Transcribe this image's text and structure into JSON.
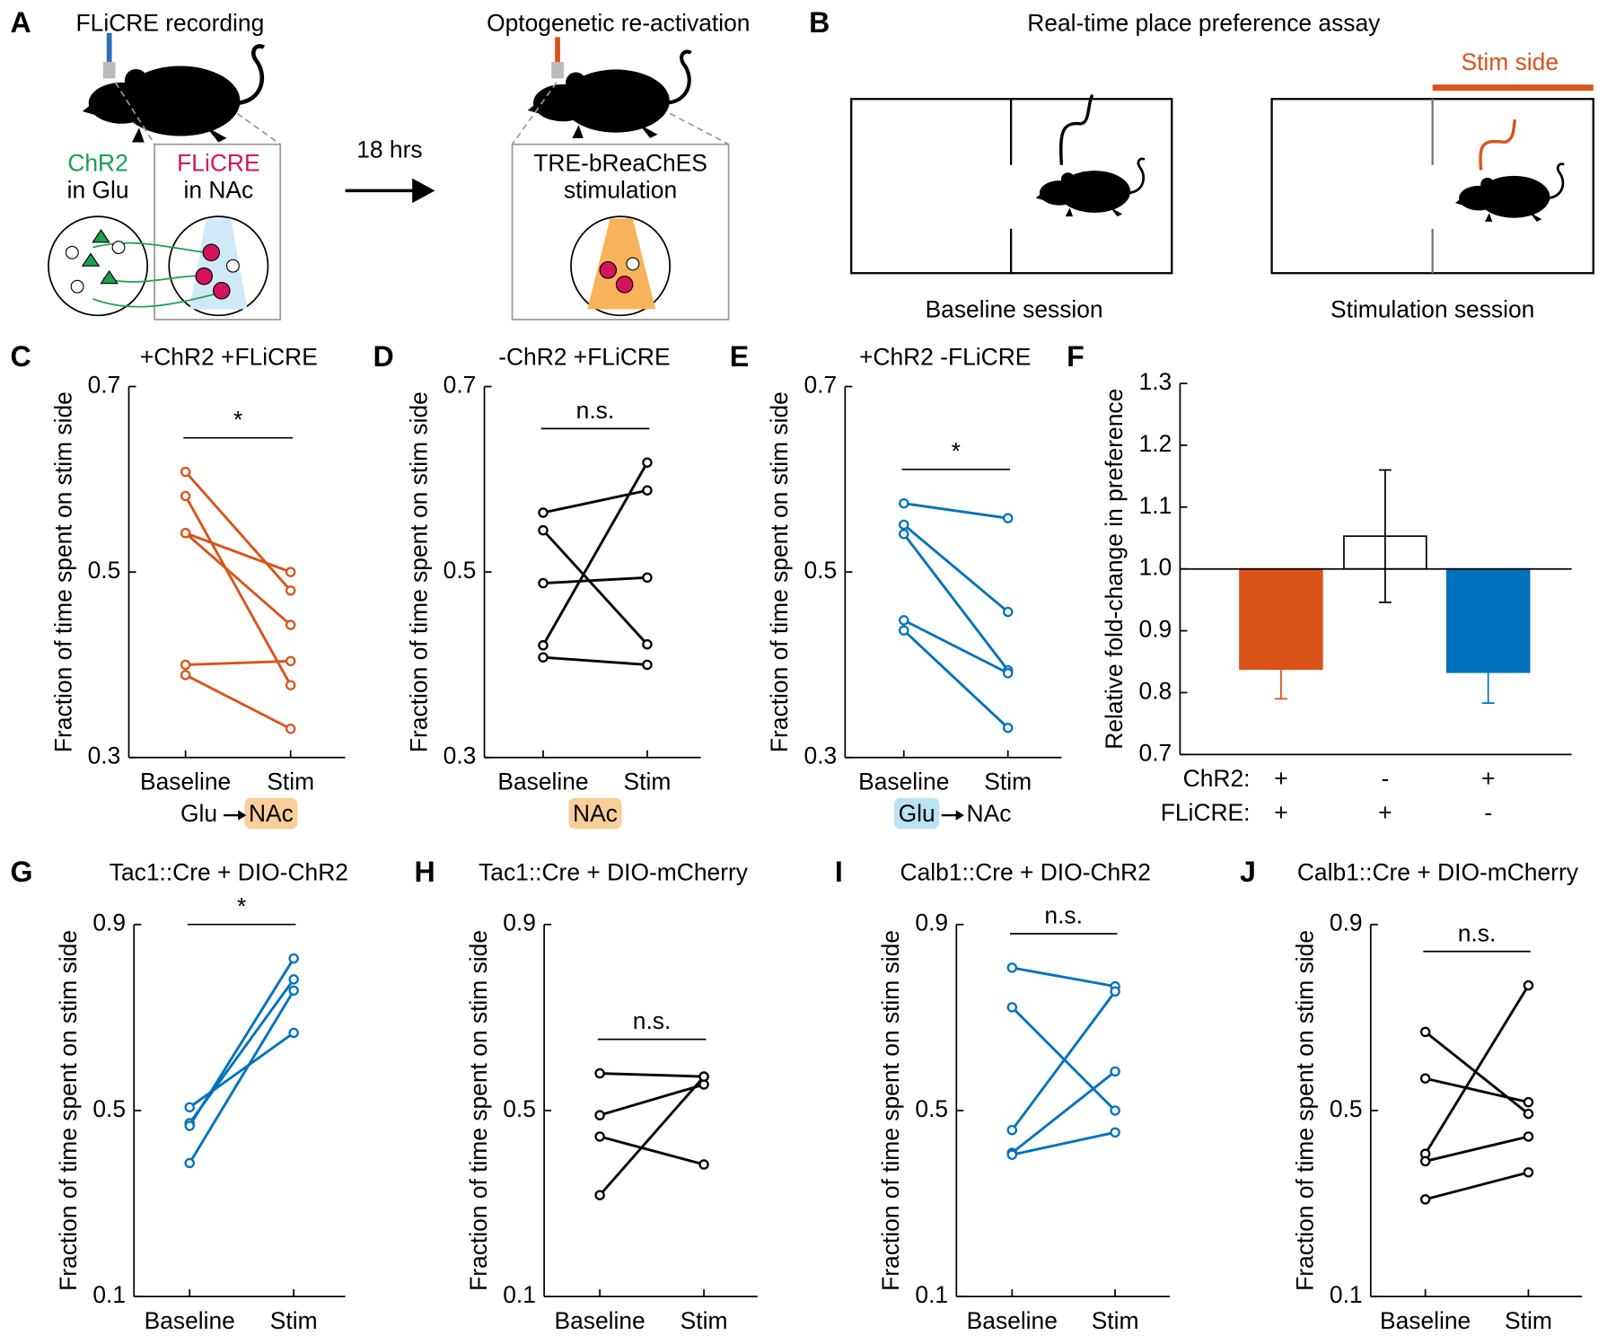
{
  "diagram_a": {
    "label": "A",
    "title_left": "FLiCRE recording",
    "title_right": "Optogenetic re-activation",
    "chr2": "ChR2",
    "in_glu": "in Glu",
    "flicre": "FLiCRE",
    "in_nac": "in NAc",
    "delay": "18 hrs",
    "construct": "TRE-bReaChES",
    "stimulation": "stimulation"
  },
  "diagram_b": {
    "label": "B",
    "title": "Real-time place preference assay",
    "stim_side": "Stim side",
    "baseline_session": "Baseline session",
    "stimulation_session": "Stimulation session"
  },
  "chart_data": [
    {
      "type": "line",
      "label": "C",
      "title": "+ChR2 +FLiCRE",
      "ylabel": "Fraction of time spent on stim side",
      "categories": [
        "Baseline",
        "Stim"
      ],
      "color": "#d95319",
      "ylim": [
        0.3,
        0.7
      ],
      "yticks": [
        0.3,
        0.5,
        0.7
      ],
      "significance": "*",
      "xnote": [
        "Glu",
        "NAc"
      ],
      "xnote_highlight": 1,
      "highlight_color": "#f7c27f",
      "series": [
        {
          "values": [
            0.608,
            0.48
          ]
        },
        {
          "values": [
            0.582,
            0.378
          ]
        },
        {
          "values": [
            0.542,
            0.5
          ]
        },
        {
          "values": [
            0.542,
            0.443
          ]
        },
        {
          "values": [
            0.4,
            0.404
          ]
        },
        {
          "values": [
            0.389,
            0.331
          ]
        }
      ]
    },
    {
      "type": "line",
      "label": "D",
      "title": "-ChR2 +FLiCRE",
      "ylabel": "Fraction of time spent on stim side",
      "categories": [
        "Baseline",
        "Stim"
      ],
      "color": "#000000",
      "ylim": [
        0.3,
        0.7
      ],
      "yticks": [
        0.3,
        0.5,
        0.7
      ],
      "significance": "n.s.",
      "xnote": [
        "NAc"
      ],
      "xnote_highlight": 0,
      "highlight_color": "#f7c27f",
      "series": [
        {
          "values": [
            0.564,
            0.588
          ]
        },
        {
          "values": [
            0.545,
            0.422
          ]
        },
        {
          "values": [
            0.488,
            0.494
          ]
        },
        {
          "values": [
            0.421,
            0.618
          ]
        },
        {
          "values": [
            0.408,
            0.4
          ]
        }
      ]
    },
    {
      "type": "line",
      "label": "E",
      "title": "+ChR2 -FLiCRE",
      "ylabel": "Fraction of time spent on stim side",
      "categories": [
        "Baseline",
        "Stim"
      ],
      "color": "#0072bd",
      "ylim": [
        0.3,
        0.7
      ],
      "yticks": [
        0.3,
        0.5,
        0.7
      ],
      "significance": "*",
      "xnote": [
        "Glu",
        "NAc"
      ],
      "xnote_highlight": 0,
      "highlight_color": "#a9dcf0",
      "series": [
        {
          "values": [
            0.574,
            0.558
          ]
        },
        {
          "values": [
            0.551,
            0.457
          ]
        },
        {
          "values": [
            0.541,
            0.394
          ]
        },
        {
          "values": [
            0.448,
            0.391
          ]
        },
        {
          "values": [
            0.437,
            0.332
          ]
        }
      ]
    },
    {
      "type": "bar",
      "label": "F",
      "ylabel": "Relative fold-change in preference",
      "values": [
        0.838,
        1.053,
        0.833
      ],
      "errors": [
        0.048,
        0.107,
        0.05
      ],
      "colors": [
        "#d95319",
        "#ffffff",
        "#0072bd"
      ],
      "error_colors": [
        "#d95319",
        "#000000",
        "#0072bd"
      ],
      "reference_line": 1,
      "ylim": [
        0.7,
        1.3
      ],
      "yticks": [
        0.7,
        0.8,
        0.9,
        {
          "value": 1,
          "label": "1.0"
        },
        1.1,
        1.2,
        1.3
      ],
      "rows": [
        {
          "name": "ChR2:",
          "labels": [
            "+",
            "-",
            "+"
          ]
        },
        {
          "name": "FLiCRE:",
          "labels": [
            "+",
            "+",
            "-"
          ]
        }
      ]
    },
    {
      "type": "line",
      "label": "G",
      "title": "Tac1::Cre + DIO-ChR2",
      "ylabel": "Fraction of time spent on stim side",
      "categories": [
        "Baseline",
        "Stim"
      ],
      "color": "#0072bd",
      "ylim": [
        0.1,
        0.9
      ],
      "yticks": [
        0.1,
        0.5,
        0.9
      ],
      "significance": "*",
      "series": [
        {
          "values": [
            0.507,
            0.667
          ]
        },
        {
          "values": [
            0.473,
            0.782
          ]
        },
        {
          "values": [
            0.467,
            0.827
          ]
        },
        {
          "values": [
            0.387,
            0.758
          ]
        }
      ]
    },
    {
      "type": "line",
      "label": "H",
      "title": "Tac1::Cre + DIO-mCherry",
      "ylabel": "Fraction of time spent on stim side",
      "categories": [
        "Baseline",
        "Stim"
      ],
      "color": "#000000",
      "ylim": [
        0.1,
        0.9
      ],
      "yticks": [
        0.1,
        0.5,
        0.9
      ],
      "significance": "n.s.",
      "series": [
        {
          "values": [
            0.58,
            0.573
          ]
        },
        {
          "values": [
            0.49,
            0.556
          ]
        },
        {
          "values": [
            0.444,
            0.384
          ]
        },
        {
          "values": [
            0.318,
            0.573
          ]
        }
      ]
    },
    {
      "type": "line",
      "label": "I",
      "title": "Calb1::Cre + DIO-ChR2",
      "ylabel": "Fraction of time spent on stim side",
      "categories": [
        "Baseline",
        "Stim"
      ],
      "color": "#0072bd",
      "ylim": [
        0.1,
        0.9
      ],
      "yticks": [
        0.1,
        0.5,
        0.9
      ],
      "significance": "n.s.",
      "series": [
        {
          "values": [
            0.807,
            0.767
          ]
        },
        {
          "values": [
            0.722,
            0.5
          ]
        },
        {
          "values": [
            0.458,
            0.756
          ]
        },
        {
          "values": [
            0.409,
            0.584
          ]
        },
        {
          "values": [
            0.405,
            0.453
          ]
        }
      ]
    },
    {
      "type": "line",
      "label": "J",
      "title": "Calb1::Cre + DIO-mCherry",
      "ylabel": "Fraction of time spent on stim side",
      "categories": [
        "Baseline",
        "Stim"
      ],
      "color": "#000000",
      "ylim": [
        0.1,
        0.9
      ],
      "yticks": [
        0.1,
        0.5,
        0.9
      ],
      "significance": "n.s.",
      "series": [
        {
          "values": [
            0.669,
            0.493
          ]
        },
        {
          "values": [
            0.569,
            0.518
          ]
        },
        {
          "values": [
            0.407,
            0.769
          ]
        },
        {
          "values": [
            0.391,
            0.444
          ]
        },
        {
          "values": [
            0.309,
            0.367
          ]
        }
      ]
    }
  ]
}
